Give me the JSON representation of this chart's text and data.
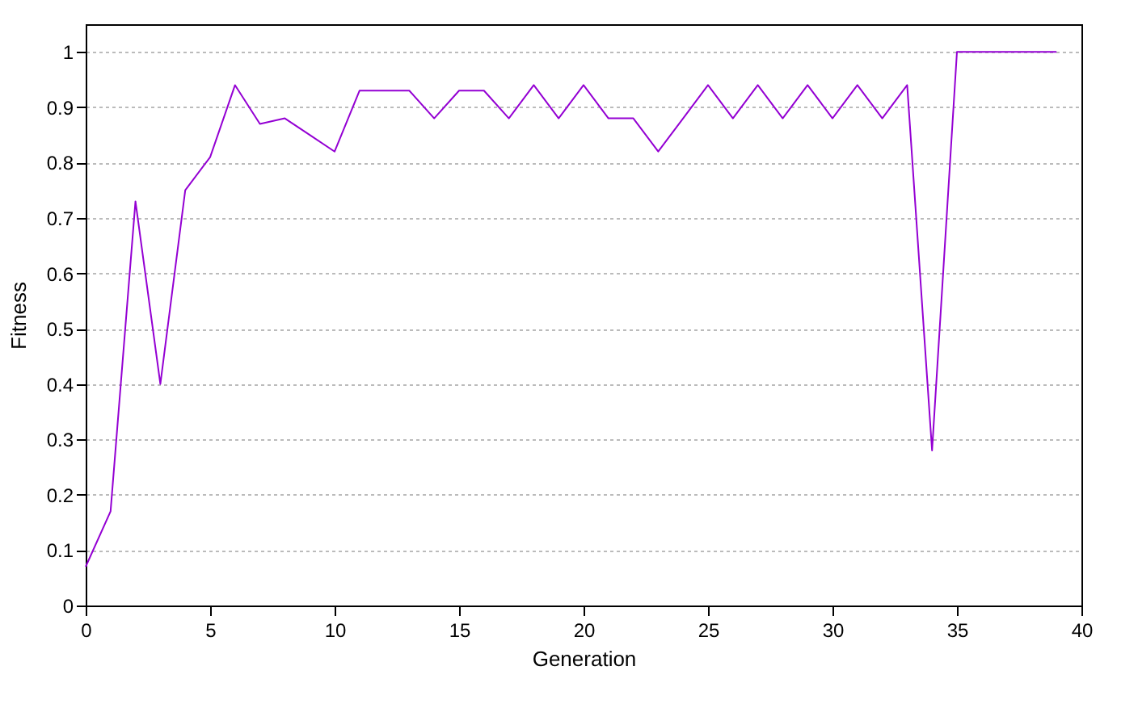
{
  "chart_data": {
    "type": "line",
    "xlabel": "Generation",
    "ylabel": "Fitness",
    "x": [
      0,
      1,
      2,
      3,
      4,
      5,
      6,
      7,
      8,
      9,
      10,
      11,
      12,
      13,
      14,
      15,
      16,
      17,
      18,
      19,
      20,
      21,
      22,
      23,
      24,
      25,
      26,
      27,
      28,
      29,
      30,
      31,
      32,
      33,
      34,
      35,
      36,
      37,
      38,
      39
    ],
    "series": [
      {
        "color": "#9400d3",
        "values": [
          0.07,
          0.17,
          0.73,
          0.4,
          0.75,
          0.81,
          0.94,
          0.87,
          0.88,
          0.85,
          0.82,
          0.93,
          0.93,
          0.93,
          0.88,
          0.93,
          0.93,
          0.88,
          0.94,
          0.88,
          0.94,
          0.88,
          0.88,
          0.82,
          0.88,
          0.94,
          0.88,
          0.94,
          0.88,
          0.94,
          0.88,
          0.94,
          0.88,
          0.94,
          0.28,
          1,
          1,
          1,
          1,
          1
        ]
      }
    ],
    "xlim": [
      0,
      40
    ],
    "xticks": [
      0,
      5,
      10,
      15,
      20,
      25,
      30,
      35,
      40
    ],
    "ylim": [
      0,
      1.05
    ],
    "yticks": [
      0,
      0.1,
      0.2,
      0.3,
      0.4,
      0.5,
      0.6,
      0.7,
      0.8,
      0.9,
      1
    ],
    "grid": "y",
    "legend": false
  }
}
